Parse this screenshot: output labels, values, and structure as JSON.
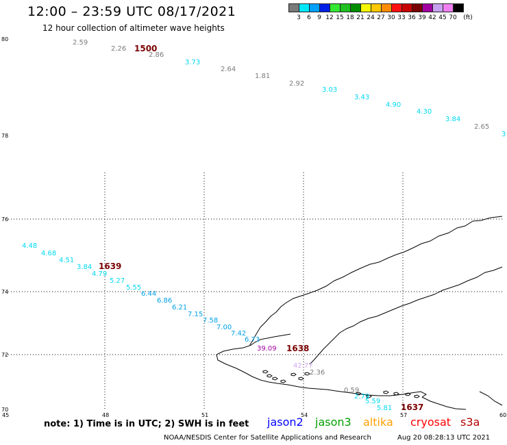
{
  "header": {
    "title": "12:00 – 23:59 UTC 08/17/2021",
    "subtitle": "12 hour collection of altimeter wave heights"
  },
  "legend": {
    "unit": "(ft)",
    "bins": [
      {
        "label": "3",
        "color": "#7a7a7a"
      },
      {
        "label": "6",
        "color": "#00e8ff"
      },
      {
        "label": "9",
        "color": "#00a0ff"
      },
      {
        "label": "12",
        "color": "#0020e8"
      },
      {
        "label": "15",
        "color": "#34e834"
      },
      {
        "label": "18",
        "color": "#20c020"
      },
      {
        "label": "21",
        "color": "#008c00"
      },
      {
        "label": "24",
        "color": "#f8f800"
      },
      {
        "label": "27",
        "color": "#ffc800"
      },
      {
        "label": "30",
        "color": "#ff8c00"
      },
      {
        "label": "33",
        "color": "#ff1010"
      },
      {
        "label": "36",
        "color": "#c80000"
      },
      {
        "label": "39",
        "color": "#780000"
      },
      {
        "label": "42",
        "color": "#a000a0"
      },
      {
        "label": "45",
        "color": "#c8a0f0"
      },
      {
        "label": "70",
        "color": "#f080f0"
      },
      {
        "label": "",
        "color": "#000000"
      }
    ]
  },
  "map": {
    "lat_ticks": [
      "80",
      "78",
      "76",
      "74",
      "72",
      "70"
    ],
    "lon_ticks": [
      "45",
      "48",
      "51",
      "54",
      "57",
      "60"
    ],
    "time_labels": [
      "1500",
      "1639",
      "1638",
      "1637"
    ],
    "top_track": [
      {
        "v": "2.59",
        "c": "#7a7a7a"
      },
      {
        "v": "2.26",
        "c": "#7a7a7a"
      },
      {
        "v": "2.86",
        "c": "#7a7a7a"
      },
      {
        "v": "3.73",
        "c": "#00d8f0"
      },
      {
        "v": "2.64",
        "c": "#7a7a7a"
      },
      {
        "v": "1.81",
        "c": "#7a7a7a"
      },
      {
        "v": "2.92",
        "c": "#7a7a7a"
      },
      {
        "v": "3.03",
        "c": "#00d8f0"
      },
      {
        "v": "3.43",
        "c": "#00d8f0"
      },
      {
        "v": "4.90",
        "c": "#00d8f0"
      },
      {
        "v": "4.30",
        "c": "#00d8f0"
      },
      {
        "v": "3.84",
        "c": "#00d8f0"
      },
      {
        "v": "2.65",
        "c": "#7a7a7a"
      },
      {
        "v": "3",
        "c": "#00d8f0"
      }
    ],
    "diag_track": [
      {
        "v": "4.48",
        "c": "#00d8f0"
      },
      {
        "v": "4.68",
        "c": "#00d8f0"
      },
      {
        "v": "4.51",
        "c": "#00d8f0"
      },
      {
        "v": "3.84",
        "c": "#00d8f0"
      },
      {
        "v": "4.79",
        "c": "#00d8f0"
      },
      {
        "v": "5.27",
        "c": "#00d8f0"
      },
      {
        "v": "5.55",
        "c": "#00d8f0"
      },
      {
        "v": "6.44",
        "c": "#00a0e8"
      },
      {
        "v": "6.86",
        "c": "#00a0e8"
      },
      {
        "v": "6.21",
        "c": "#00a0e8"
      },
      {
        "v": "7.15",
        "c": "#00a0e8"
      },
      {
        "v": "7.58",
        "c": "#00a0e8"
      },
      {
        "v": "7.00",
        "c": "#00a0e8"
      },
      {
        "v": "7.42",
        "c": "#00a0e8"
      },
      {
        "v": "6.73",
        "c": "#00a0e8"
      },
      {
        "v": "39.09",
        "c": "#a000a0"
      }
    ],
    "lower_track": [
      {
        "v": "42.77",
        "c": "#d0a8f0"
      },
      {
        "v": "2.36",
        "c": "#7a7a7a"
      },
      {
        "v": "0.59",
        "c": "#7a7a7a"
      },
      {
        "v": "2.79",
        "c": "#00d8f0"
      },
      {
        "v": "5.59",
        "c": "#00d8f0"
      },
      {
        "v": "5.81",
        "c": "#00d8f0"
      }
    ]
  },
  "footer": {
    "note": "note: 1) Time is in UTC; 2) SWH is in feet",
    "satellites": [
      {
        "name": "jason2",
        "color": "#0000ff"
      },
      {
        "name": "jason3",
        "color": "#00a000"
      },
      {
        "name": "altika",
        "color": "#ffa000"
      },
      {
        "name": "cryosat",
        "color": "#ff0000"
      },
      {
        "name": "s3a",
        "color": "#b00000"
      }
    ],
    "credit": "NOAA/NESDIS Center for Satellite Applications and Research",
    "timestamp": "Aug 20 08:28:13 UTC 2021"
  }
}
